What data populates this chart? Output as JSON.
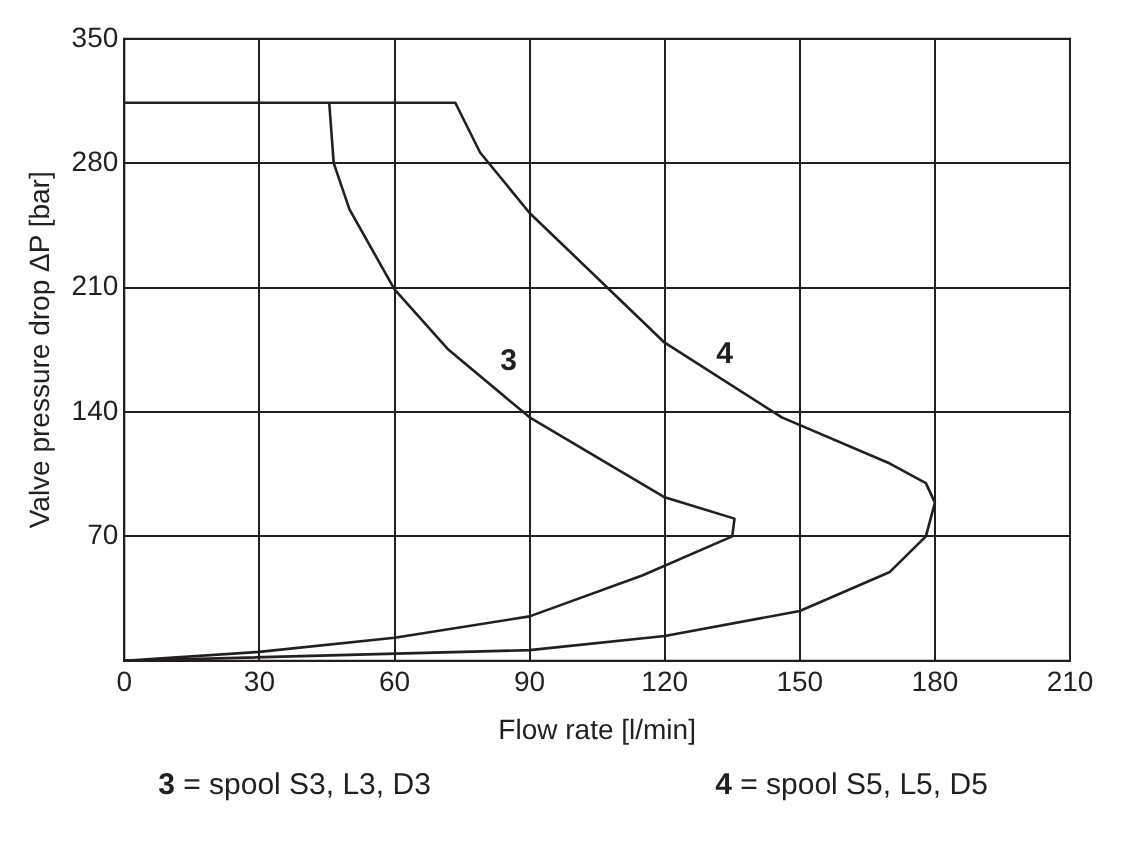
{
  "chart_data": {
    "type": "line",
    "xlabel": "Flow rate [l/min]",
    "ylabel": "Valve pressure drop ΔP [bar]",
    "xlim": [
      0,
      210
    ],
    "xticks": [
      0,
      30,
      60,
      90,
      120,
      150,
      180,
      210
    ],
    "ylim": [
      0,
      350
    ],
    "yticks": [
      {
        "value": 0,
        "label": null
      },
      70,
      140,
      210,
      280,
      350
    ],
    "grid": true,
    "legend": false,
    "marker": "none",
    "line_style": "solid",
    "series": [
      {
        "name": "3",
        "color": "#231f20",
        "x": [
          0,
          30,
          60,
          90,
          115,
          135,
          135.5,
          120,
          90,
          72,
          60,
          50,
          46.5,
          45.5
        ],
        "values": [
          0,
          5,
          13,
          25,
          48,
          70,
          80,
          92,
          137,
          175,
          209,
          254,
          280,
          314
        ]
      },
      {
        "name": "4",
        "color": "#231f20",
        "x": [
          0,
          90,
          120,
          150,
          170,
          178,
          180,
          178,
          170,
          146,
          120,
          90,
          79,
          73.5,
          0
        ],
        "values": [
          0,
          6,
          14,
          28,
          50,
          70,
          89,
          100,
          111,
          137,
          179,
          252,
          286,
          314,
          314
        ]
      }
    ],
    "annotations": [
      "3 =  spool S3, L3, D3",
      "4 = spool S5, L5, D5"
    ]
  }
}
